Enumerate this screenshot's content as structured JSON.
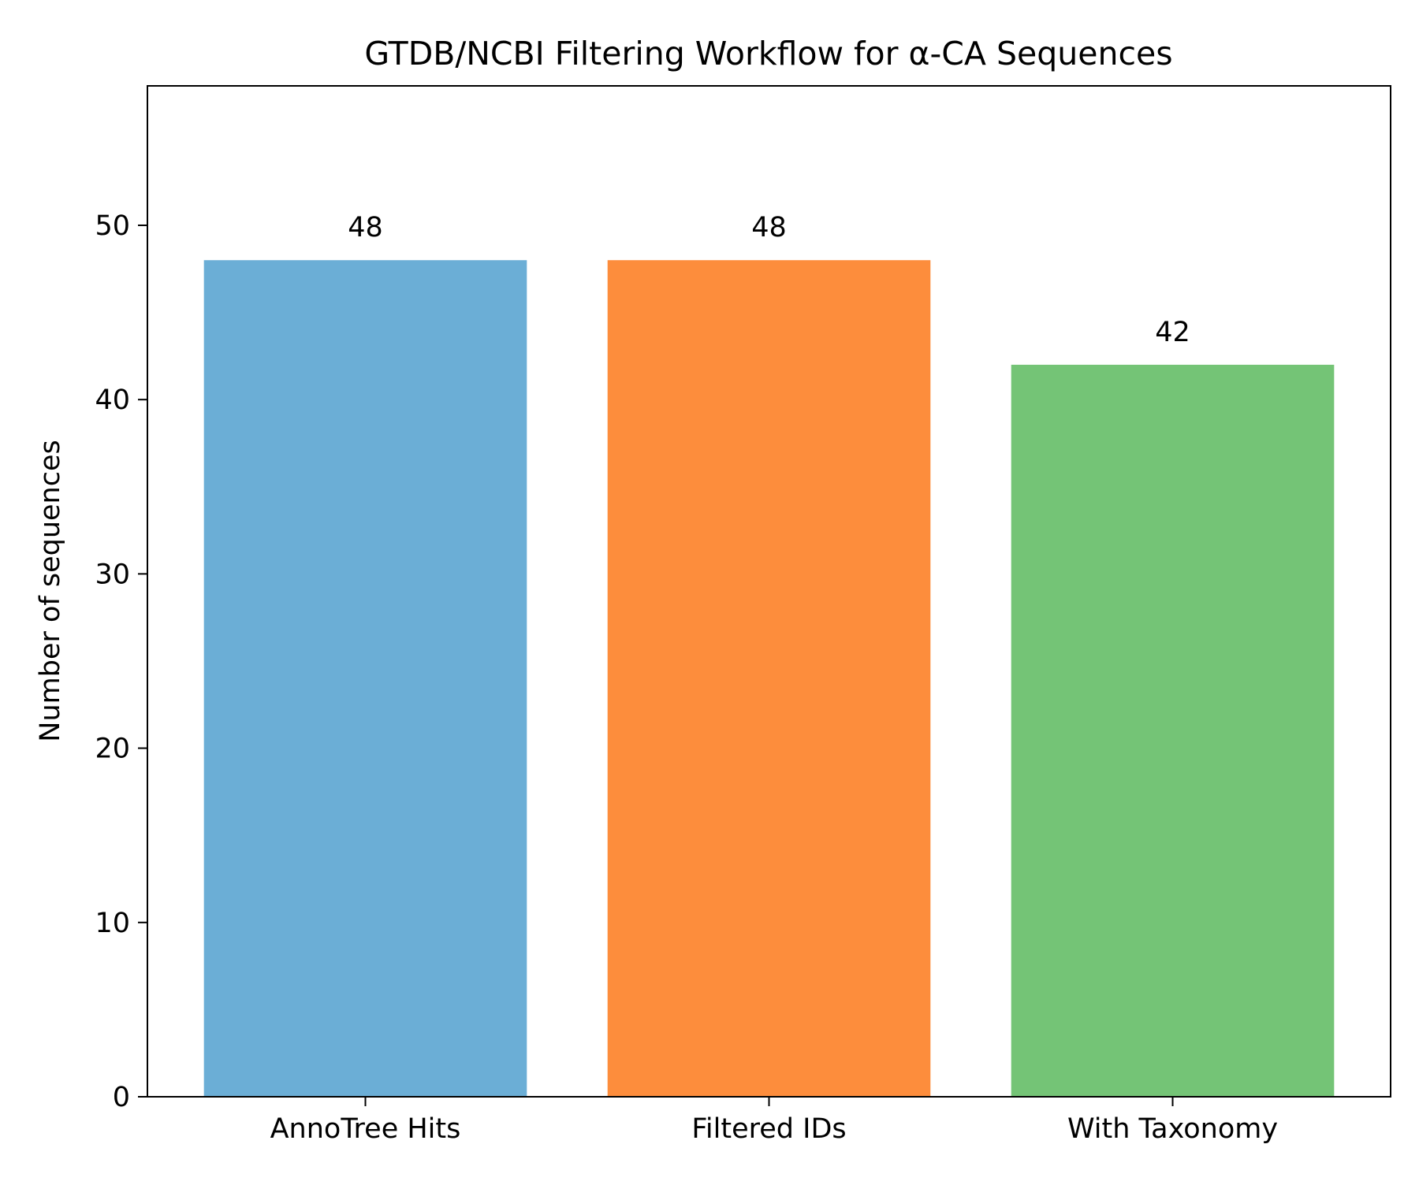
{
  "chart_data": {
    "type": "bar",
    "title": "GTDB/NCBI Filtering Workflow for α-CA Sequences",
    "xlabel": "",
    "ylabel": "Number of sequences",
    "categories": [
      "AnnoTree Hits",
      "Filtered IDs",
      "With Taxonomy"
    ],
    "values": [
      48,
      48,
      42
    ],
    "data_labels": [
      "48",
      "48",
      "42"
    ],
    "colors": [
      "#6baed6",
      "#fd8d3c",
      "#74c476"
    ],
    "ylim": [
      0,
      58
    ],
    "yticks": [
      0,
      10,
      20,
      30,
      40,
      50
    ],
    "grid": false,
    "legend": "none"
  }
}
